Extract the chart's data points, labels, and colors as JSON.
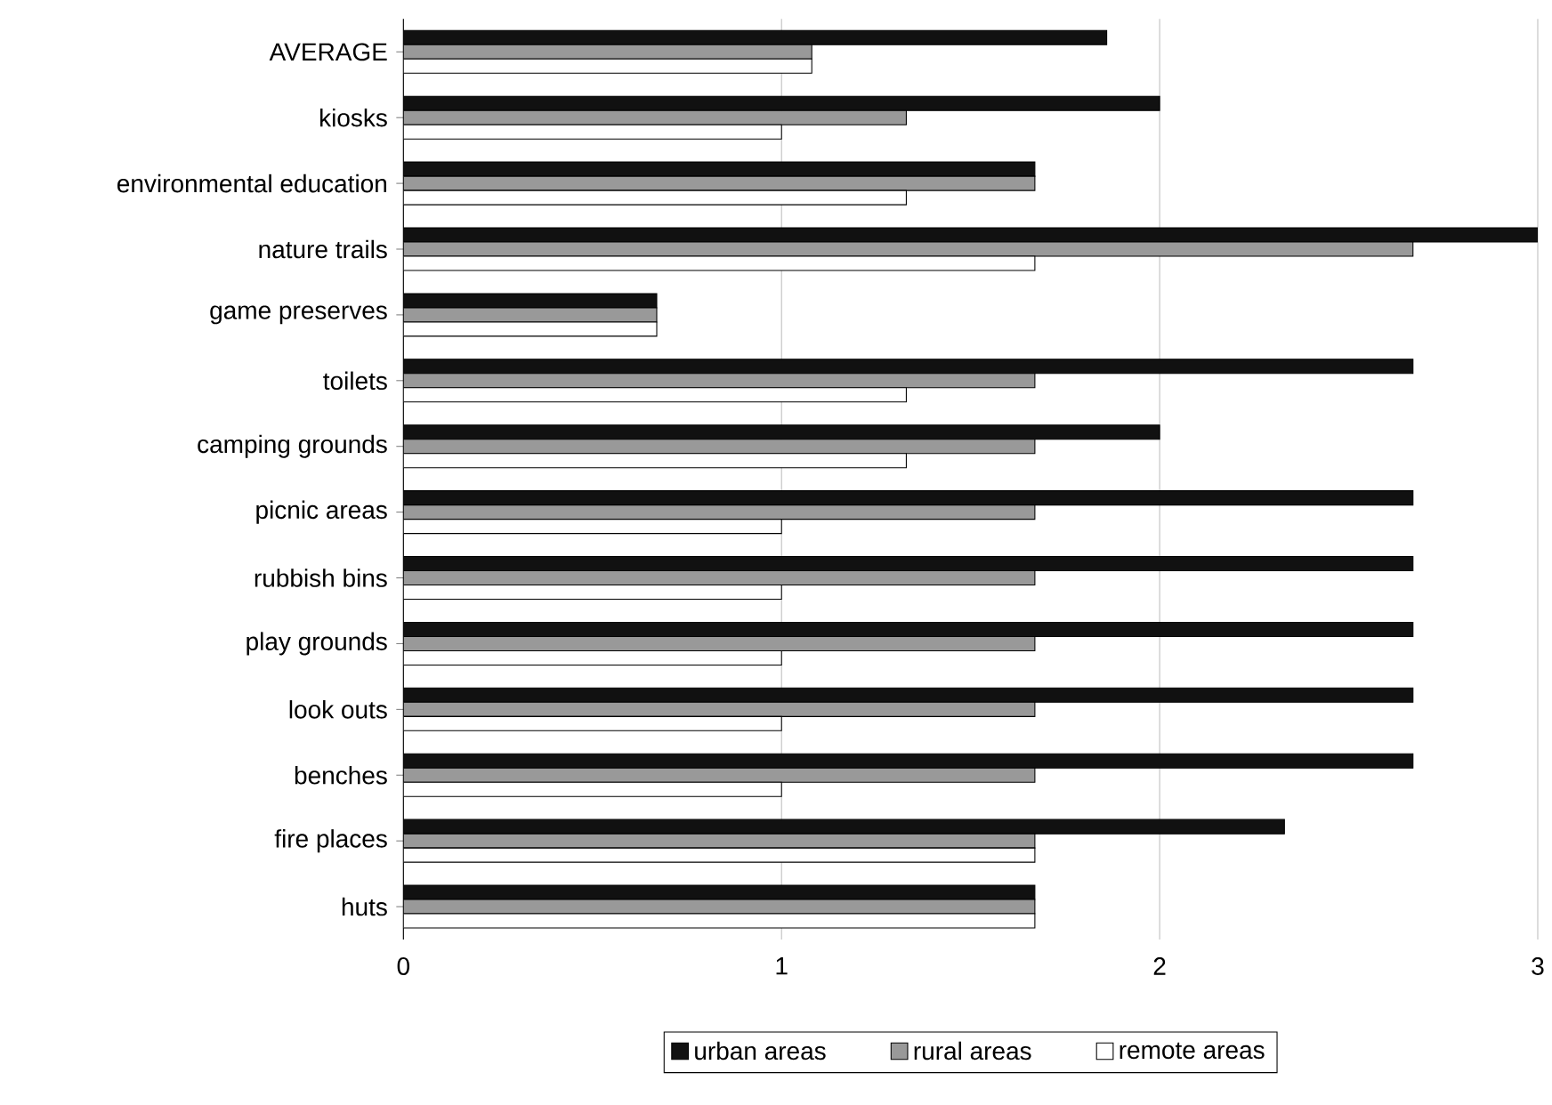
{
  "chart_data": {
    "type": "bar",
    "orientation": "horizontal",
    "categories": [
      "AVERAGE",
      "kiosks",
      "environmental education",
      "nature trails",
      "game preserves",
      "toilets",
      "camping grounds",
      "picnic areas",
      "rubbish bins",
      "play grounds",
      "look outs",
      "benches",
      "fire places",
      "huts"
    ],
    "series": [
      {
        "name": "urban areas",
        "color": "#111111",
        "values": [
          1.86,
          2,
          1.67,
          3,
          0.67,
          2.67,
          2,
          2.67,
          2.67,
          2.67,
          2.67,
          2.67,
          2.33,
          1.67
        ]
      },
      {
        "name": "rural areas",
        "color": "#999999",
        "values": [
          1.08,
          1.33,
          1.67,
          2.67,
          0.67,
          1.67,
          1.67,
          1.67,
          1.67,
          1.67,
          1.67,
          1.67,
          1.67,
          1.67
        ]
      },
      {
        "name": "remote areas",
        "color": "#ffffff",
        "values": [
          1.08,
          1,
          1.33,
          1.67,
          0.67,
          1.33,
          1.33,
          1,
          1,
          1,
          1,
          1,
          1.67,
          1.67
        ]
      }
    ],
    "xlim": [
      0,
      3
    ],
    "xticks": [
      0,
      1,
      2,
      3
    ],
    "grid": "x",
    "legend": "bottom"
  }
}
